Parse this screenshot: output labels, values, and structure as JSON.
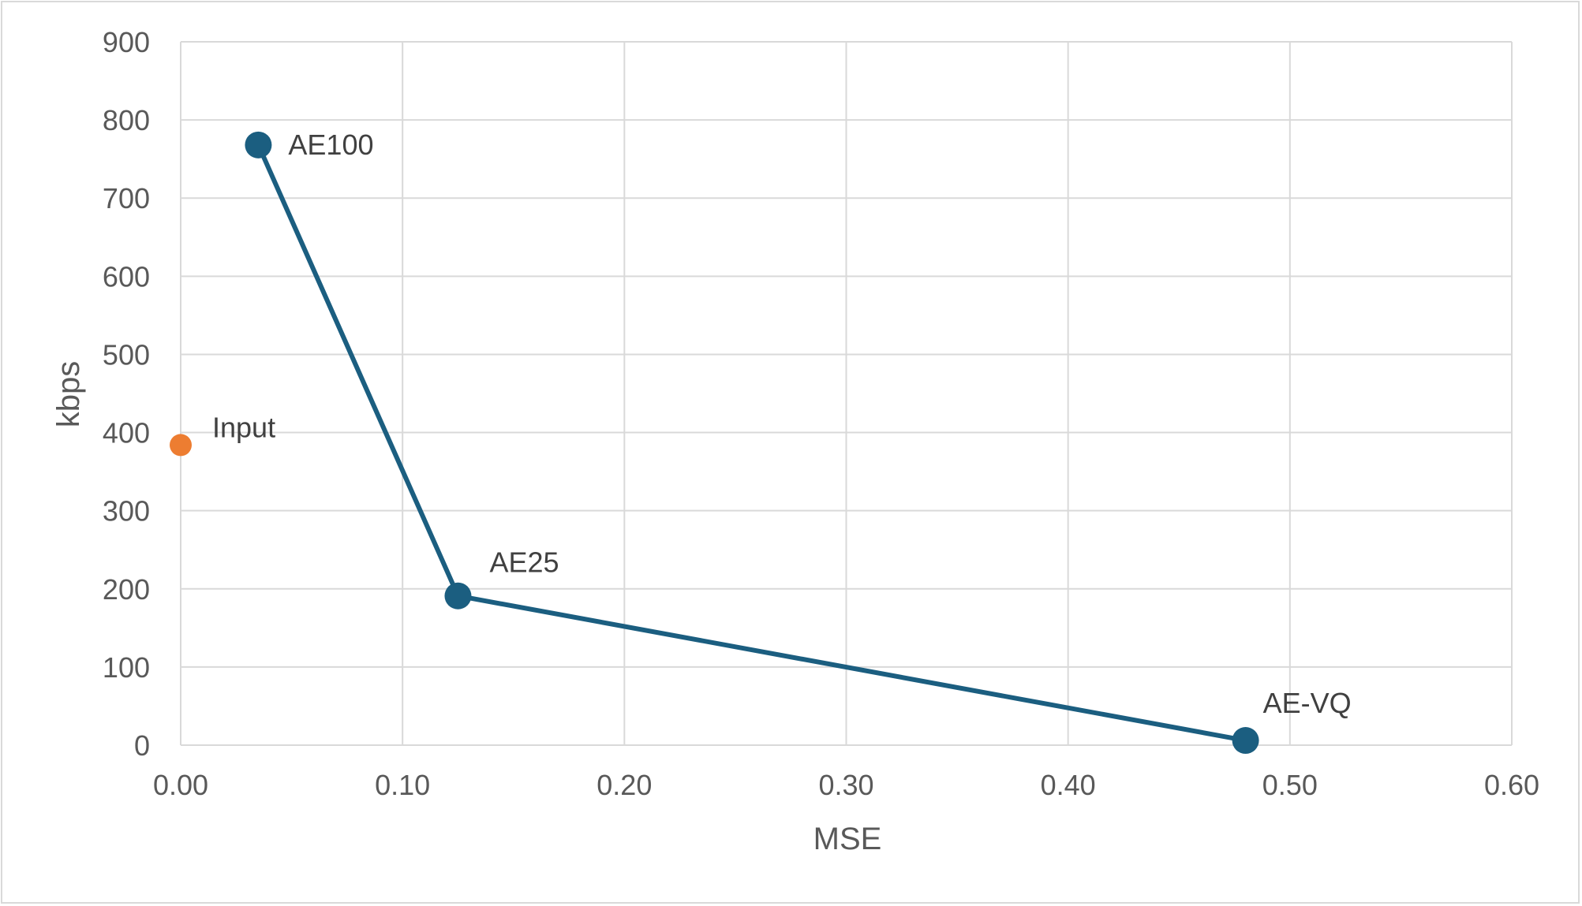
{
  "chart_data": {
    "type": "scatter",
    "title": "",
    "xlabel": "MSE",
    "ylabel": "kbps",
    "xlim": [
      0,
      0.6
    ],
    "ylim": [
      0,
      900
    ],
    "x_ticks": [
      "0.00",
      "0.10",
      "0.20",
      "0.30",
      "0.40",
      "0.50",
      "0.60"
    ],
    "y_ticks": [
      "0",
      "100",
      "200",
      "300",
      "400",
      "500",
      "600",
      "700",
      "800",
      "900"
    ],
    "grid": true,
    "legend": "none",
    "series": [
      {
        "color": "#1b5e80",
        "connected": true,
        "points": [
          {
            "label": "AE100",
            "x": 0.035,
            "y": 768
          },
          {
            "label": "AE25",
            "x": 0.125,
            "y": 191
          },
          {
            "label": "AE-VQ",
            "x": 0.48,
            "y": 6
          }
        ]
      },
      {
        "color": "#ed7d31",
        "connected": false,
        "points": [
          {
            "label": "Input",
            "x": 0.0,
            "y": 384
          }
        ]
      }
    ]
  }
}
